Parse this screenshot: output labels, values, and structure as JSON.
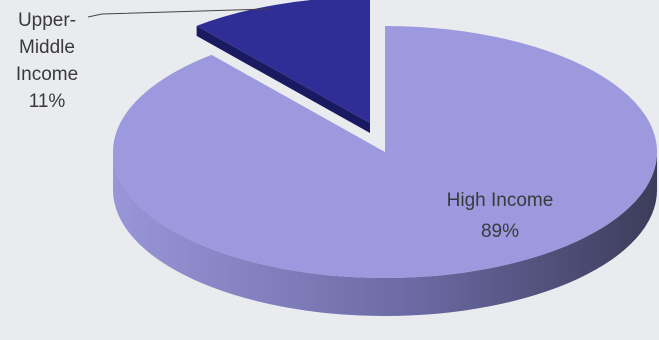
{
  "chart_data": {
    "type": "pie",
    "title": "",
    "labels": [
      "High Income",
      "Upper-Middle Income"
    ],
    "values": [
      89,
      11
    ],
    "value_suffix": "%",
    "colors": {
      "high_income_top": "#9c99de",
      "high_income_side_light": "#9896d8",
      "high_income_side_dark": "#3c3c5a",
      "upper_middle_top": "#2e2e96",
      "upper_middle_side": "#1a1a60",
      "leader_line": "#444444",
      "background": "#e9ebee"
    },
    "slice_labels": {
      "high_income": {
        "name": "High Income",
        "value_text": "89%"
      },
      "upper_middle": {
        "name_line1": "Upper-",
        "name_line2": "Middle",
        "name_line3": "Income",
        "value_text": "11%"
      }
    }
  }
}
